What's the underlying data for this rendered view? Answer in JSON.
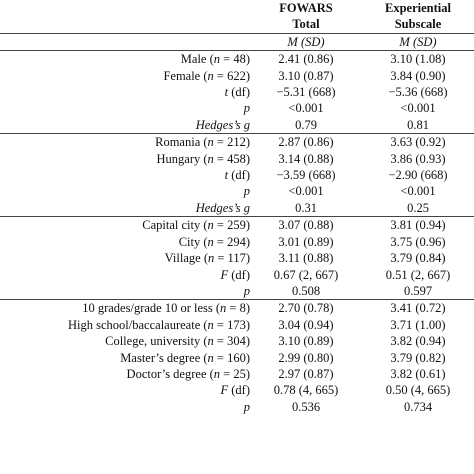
{
  "header": {
    "col1_line1": "FOWARS",
    "col1_line2": "Total",
    "col2_line1": "Experiential",
    "col2_line2": "Subscale",
    "stat_label": "M (SD)"
  },
  "groups": [
    {
      "rows": [
        {
          "label": "Male (n = 48)",
          "c1": "2.41 (0.86)",
          "c2": "3.10 (1.08)"
        },
        {
          "label": "Female (n = 622)",
          "c1": "3.10 (0.87)",
          "c2": "3.84 (0.90)"
        },
        {
          "label": "t (df)",
          "c1": "−5.31 (668)",
          "c2": "−5.36 (668)"
        },
        {
          "label": "p",
          "c1": "<0.001",
          "c2": "<0.001"
        },
        {
          "label": "Hedges’s g",
          "c1": "0.79",
          "c2": "0.81"
        }
      ]
    },
    {
      "rows": [
        {
          "label": "Romania (n = 212)",
          "c1": "2.87 (0.86)",
          "c2": "3.63 (0.92)"
        },
        {
          "label": "Hungary (n = 458)",
          "c1": "3.14 (0.88)",
          "c2": "3.86 (0.93)"
        },
        {
          "label": "t (df)",
          "c1": "−3.59 (668)",
          "c2": "−2.90 (668)"
        },
        {
          "label": "p",
          "c1": "<0.001",
          "c2": "<0.001"
        },
        {
          "label": "Hedges’s g",
          "c1": "0.31",
          "c2": "0.25"
        }
      ]
    },
    {
      "rows": [
        {
          "label": "Capital city (n = 259)",
          "c1": "3.07 (0.88)",
          "c2": "3.81 (0.94)"
        },
        {
          "label": "City (n = 294)",
          "c1": "3.01 (0.89)",
          "c2": "3.75 (0.96)"
        },
        {
          "label": "Village (n = 117)",
          "c1": "3.11 (0.88)",
          "c2": "3.79 (0.84)"
        },
        {
          "label": "F (df)",
          "c1": "0.67 (2, 667)",
          "c2": "0.51 (2, 667)"
        },
        {
          "label": "p",
          "c1": "0.508",
          "c2": "0.597"
        }
      ]
    },
    {
      "rows": [
        {
          "label": "10 grades/grade 10 or less (n = 8)",
          "c1": "2.70 (0.78)",
          "c2": "3.41 (0.72)"
        },
        {
          "label": "High school/baccalaureate (n = 173)",
          "c1": "3.04 (0.94)",
          "c2": "3.71 (1.00)"
        },
        {
          "label": "College, university (n = 304)",
          "c1": "3.10 (0.89)",
          "c2": "3.82 (0.94)"
        },
        {
          "label": "Master’s degree (n = 160)",
          "c1": "2.99 (0.80)",
          "c2": "3.79 (0.82)"
        },
        {
          "label": "Doctor’s degree (n = 25)",
          "c1": "2.97 (0.87)",
          "c2": "3.82 (0.61)"
        },
        {
          "label": "F (df)",
          "c1": "0.78 (4, 665)",
          "c2": "0.50 (4, 665)"
        },
        {
          "label": "p",
          "c1": "0.536",
          "c2": "0.734"
        }
      ]
    }
  ]
}
